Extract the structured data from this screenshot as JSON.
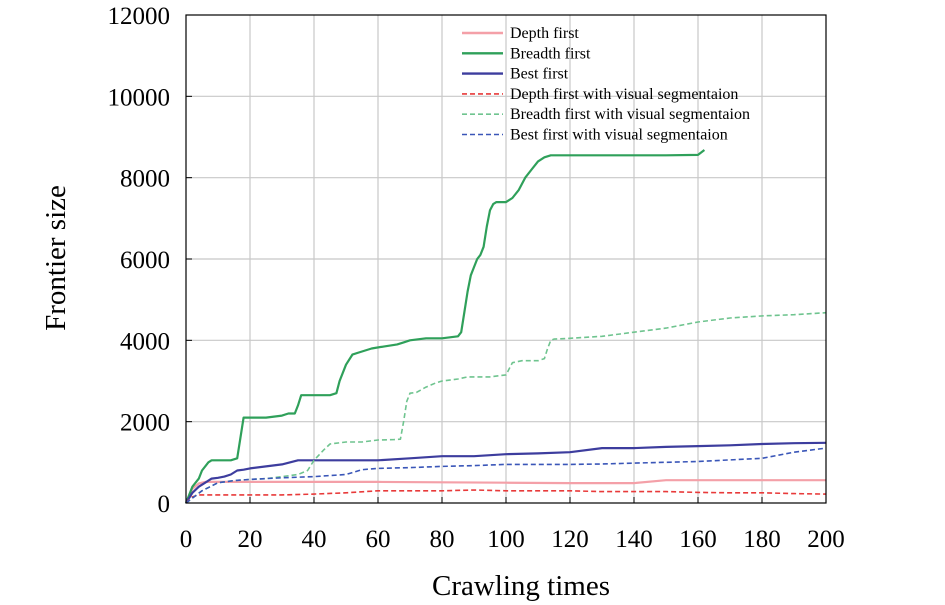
{
  "chart_data": {
    "type": "line",
    "xlabel": "Crawling times",
    "ylabel": "Frontier size",
    "xlim": [
      0,
      200
    ],
    "ylim": [
      0,
      12000
    ],
    "xticks": [
      "0",
      "20",
      "40",
      "60",
      "80",
      "100",
      "120",
      "140",
      "160",
      "180",
      "200"
    ],
    "yticks": [
      "0",
      "2000",
      "4000",
      "6000",
      "8000",
      "10000",
      "12000"
    ],
    "grid": true,
    "legend_position": "top-right",
    "series": [
      {
        "name": "Depth first",
        "color": "#f4a0a8",
        "style": "solid",
        "x": [
          0,
          2,
          4,
          6,
          10,
          20,
          40,
          60,
          80,
          100,
          120,
          140,
          150,
          160,
          180,
          200
        ],
        "y": [
          0,
          350,
          480,
          520,
          520,
          520,
          520,
          520,
          510,
          500,
          490,
          490,
          560,
          560,
          560,
          560
        ]
      },
      {
        "name": "Breadth first",
        "color": "#2fa05a",
        "style": "solid",
        "x": [
          0,
          2,
          4,
          5,
          7,
          8,
          10,
          12,
          14,
          16,
          17,
          18,
          20,
          25,
          30,
          32,
          34,
          35,
          36,
          40,
          45,
          47,
          48,
          50,
          52,
          54,
          56,
          58,
          62,
          66,
          68,
          70,
          75,
          80,
          85,
          86,
          87,
          88,
          89,
          90,
          91,
          92,
          93,
          94,
          95,
          96,
          97,
          98,
          100,
          102,
          104,
          106,
          108,
          110,
          112,
          114,
          116,
          120,
          130,
          140,
          150,
          160,
          162
        ],
        "y": [
          0,
          400,
          600,
          800,
          1000,
          1050,
          1050,
          1050,
          1050,
          1100,
          1600,
          2100,
          2100,
          2100,
          2150,
          2200,
          2200,
          2400,
          2650,
          2650,
          2650,
          2700,
          3000,
          3400,
          3650,
          3700,
          3750,
          3800,
          3850,
          3900,
          3950,
          4000,
          4050,
          4050,
          4100,
          4200,
          4700,
          5200,
          5600,
          5800,
          6000,
          6100,
          6300,
          6800,
          7200,
          7350,
          7400,
          7400,
          7400,
          7500,
          7700,
          8000,
          8200,
          8400,
          8500,
          8550,
          8550,
          8550,
          8550,
          8550,
          8550,
          8560,
          8680
        ]
      },
      {
        "name": "Best first",
        "color": "#3d3d9e",
        "style": "solid",
        "x": [
          0,
          2,
          4,
          6,
          8,
          10,
          12,
          14,
          16,
          18,
          20,
          25,
          30,
          35,
          40,
          50,
          60,
          70,
          80,
          90,
          100,
          110,
          120,
          130,
          140,
          150,
          160,
          170,
          180,
          190,
          200
        ],
        "y": [
          0,
          250,
          400,
          500,
          600,
          620,
          650,
          700,
          800,
          820,
          850,
          900,
          950,
          1050,
          1050,
          1050,
          1050,
          1100,
          1150,
          1150,
          1200,
          1220,
          1250,
          1350,
          1350,
          1380,
          1400,
          1420,
          1450,
          1470,
          1480
        ]
      },
      {
        "name": "Depth first with visual segmentaion",
        "color": "#e83a3a",
        "style": "dashed",
        "x": [
          0,
          2,
          4,
          6,
          10,
          20,
          30,
          40,
          50,
          60,
          70,
          80,
          90,
          100,
          110,
          120,
          130,
          140,
          150,
          160,
          170,
          180,
          190,
          200
        ],
        "y": [
          0,
          150,
          200,
          200,
          200,
          200,
          200,
          220,
          250,
          300,
          300,
          300,
          320,
          300,
          300,
          300,
          280,
          280,
          280,
          260,
          250,
          250,
          230,
          220
        ]
      },
      {
        "name": "Breadth first with visual segmentaion",
        "color": "#6fc48f",
        "style": "dashed",
        "x": [
          0,
          5,
          10,
          15,
          20,
          25,
          30,
          35,
          38,
          40,
          43,
          45,
          48,
          50,
          55,
          60,
          65,
          67,
          68,
          69,
          70,
          72,
          75,
          78,
          80,
          85,
          88,
          90,
          95,
          100,
          101,
          102,
          105,
          110,
          112,
          113,
          114,
          115,
          120,
          130,
          140,
          150,
          160,
          170,
          180,
          190,
          200
        ],
        "y": [
          0,
          300,
          500,
          550,
          580,
          600,
          650,
          700,
          800,
          1050,
          1300,
          1450,
          1480,
          1500,
          1500,
          1550,
          1560,
          1570,
          2000,
          2500,
          2700,
          2720,
          2850,
          2950,
          3000,
          3050,
          3100,
          3100,
          3100,
          3150,
          3300,
          3450,
          3500,
          3500,
          3550,
          3800,
          4000,
          4030,
          4050,
          4100,
          4200,
          4300,
          4450,
          4550,
          4600,
          4630,
          4680
        ]
      },
      {
        "name": "Best first with visual segmentaion",
        "color": "#3a56b8",
        "style": "dashed",
        "x": [
          0,
          5,
          10,
          15,
          20,
          25,
          30,
          40,
          50,
          55,
          60,
          70,
          80,
          90,
          100,
          110,
          120,
          130,
          140,
          150,
          160,
          170,
          180,
          190,
          200
        ],
        "y": [
          0,
          300,
          500,
          550,
          580,
          600,
          620,
          650,
          700,
          820,
          850,
          870,
          900,
          920,
          950,
          950,
          950,
          960,
          980,
          1000,
          1020,
          1060,
          1100,
          1250,
          1350
        ]
      }
    ]
  }
}
